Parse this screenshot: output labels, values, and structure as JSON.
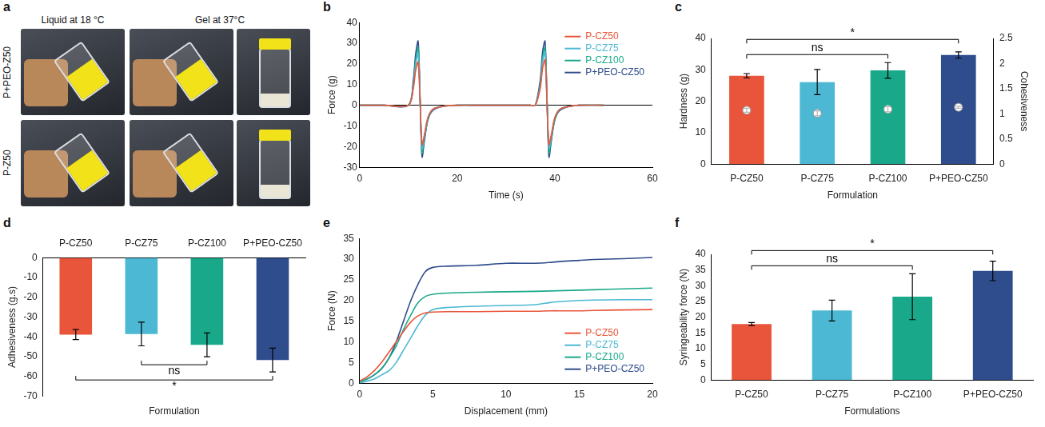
{
  "photo_panel": {
    "letter": "a",
    "column_titles": [
      "Liquid at 18 °C",
      "Gel at 37°C"
    ],
    "row_titles": [
      "P+PEO-Z50",
      "P-Z50"
    ]
  },
  "chart_data": [
    {
      "letter": "b",
      "type": "line",
      "x_label": "Time (s)",
      "y_label": "Force (g)",
      "x": [
        0,
        5,
        10,
        11,
        11.5,
        12,
        12.4,
        12.8,
        13.3,
        14,
        15,
        17,
        20,
        25,
        30,
        35,
        36,
        37,
        37.5,
        38,
        38.4,
        38.8,
        39.3,
        40,
        41,
        43,
        45,
        50
      ],
      "series": [
        {
          "name": "P-CZ50",
          "color": "#e9553a",
          "values": [
            0,
            0,
            0,
            8,
            17,
            21,
            2,
            -19,
            -14,
            -6,
            -2,
            -0.5,
            0,
            0,
            0,
            0,
            0,
            8,
            18,
            22,
            2,
            -19,
            -14,
            -6,
            -2,
            -0.5,
            0,
            0
          ]
        },
        {
          "name": "P-CZ75",
          "color": "#4cb8d4",
          "values": [
            0,
            0,
            0,
            9,
            20,
            25,
            2,
            -21,
            -15,
            -6,
            -2,
            -0.5,
            0,
            0,
            0,
            0,
            0,
            9,
            21,
            26,
            2,
            -21,
            -15,
            -6,
            -2,
            -0.5,
            0,
            0
          ]
        },
        {
          "name": "P-CZ100",
          "color": "#19a98a",
          "values": [
            0,
            0,
            0,
            10,
            22,
            28,
            3,
            -23,
            -16,
            -7,
            -2,
            -0.5,
            0,
            0,
            0,
            0,
            0,
            10,
            23,
            28,
            3,
            -23,
            -16,
            -7,
            -2,
            -0.5,
            0,
            0
          ]
        },
        {
          "name": "P+PEO-CZ50",
          "color": "#2f4d8c",
          "values": [
            0,
            0,
            0,
            12,
            25,
            31,
            3,
            -25,
            -17,
            -7,
            -2.5,
            -0.5,
            0,
            0,
            0,
            0,
            0,
            12,
            26,
            31,
            3,
            -25,
            -17,
            -7,
            -2.5,
            -0.5,
            0,
            0
          ]
        }
      ],
      "xlim": [
        0,
        60
      ],
      "xticks": [
        0,
        20,
        40,
        60
      ],
      "ylim": [
        -30,
        40
      ],
      "yticks": [
        -30,
        -20,
        -10,
        0,
        10,
        20,
        30,
        40
      ],
      "grid": false,
      "legend": "upper right"
    },
    {
      "letter": "c",
      "type": "bar",
      "x_label": "Formulation",
      "y_label": "Hardness (g)",
      "y2_label": "Cohesiveness",
      "categories": [
        "P-CZ50",
        "P-CZ75",
        "P-CZ100",
        "P+PEO-CZ50"
      ],
      "series": [
        {
          "type": "bar",
          "colors": [
            "#e9553a",
            "#4cb8d4",
            "#19a98a",
            "#2f4d8c"
          ],
          "values": [
            28.1,
            26.1,
            29.8,
            34.7
          ],
          "errors": [
            0.7,
            4.0,
            2.5,
            1.0
          ]
        },
        {
          "type": "scatter",
          "axis": "y2",
          "color": "#ffffff",
          "marker": "circle",
          "values": [
            1.07,
            1.01,
            1.09,
            1.13
          ],
          "errors": [
            0.04,
            0.05,
            0.05,
            0.02
          ]
        }
      ],
      "ylim": [
        0,
        40
      ],
      "yticks": [
        0,
        10,
        20,
        30,
        40
      ],
      "y2lim": [
        0,
        2.5
      ],
      "y2ticks": [
        0,
        0.5,
        1,
        1.5,
        2,
        2.5
      ],
      "annotations": [
        {
          "text": "ns",
          "from": "P-CZ50",
          "to": "P-CZ100"
        },
        {
          "text": "*",
          "from": "P-CZ50",
          "to": "P+PEO-CZ50"
        }
      ],
      "grid": false
    },
    {
      "letter": "d",
      "type": "bar",
      "x_label": "Formulation",
      "y_label": "Adhesiveness (g.s)",
      "categories": [
        "P-CZ50",
        "P-CZ75",
        "P-CZ100",
        "P+PEO-CZ50"
      ],
      "colors": [
        "#e9553a",
        "#4cb8d4",
        "#19a98a",
        "#2f4d8c"
      ],
      "values": [
        -38.8,
        -38.5,
        -44.0,
        -51.7
      ],
      "errors": [
        2.5,
        6.0,
        6.0,
        6.0
      ],
      "ylim": [
        -70,
        0
      ],
      "yticks": [
        -70,
        -60,
        -50,
        -40,
        -30,
        -20,
        -10,
        0
      ],
      "annotations": [
        {
          "text": "ns",
          "from": "P-CZ75",
          "to": "P-CZ100"
        },
        {
          "text": "*",
          "from": "P-CZ50",
          "to": "P+PEO-CZ50"
        }
      ],
      "grid": false
    },
    {
      "letter": "e",
      "type": "line",
      "x_label": "Displacement (mm)",
      "y_label": "Force (N)",
      "x": [
        0,
        0.5,
        1,
        1.5,
        2,
        2.5,
        3,
        3.5,
        4,
        4.5,
        5,
        6,
        8,
        10,
        12,
        13,
        14,
        15,
        16,
        18,
        20
      ],
      "series": [
        {
          "name": "P-CZ50",
          "color": "#e9553a",
          "values": [
            0.5,
            1.5,
            3,
            5,
            7.5,
            10,
            12.5,
            14.8,
            16.3,
            17,
            17.2,
            17.3,
            17.3,
            17.4,
            17.4,
            17.5,
            17.5,
            17.5,
            17.6,
            17.7,
            17.8
          ]
        },
        {
          "name": "P-CZ75",
          "color": "#4cb8d4",
          "values": [
            0,
            0.5,
            1,
            2,
            3,
            5,
            8,
            11,
            14,
            16.5,
            17.8,
            18.3,
            18.6,
            18.8,
            19,
            19.5,
            19.8,
            20,
            20.1,
            20.2,
            20.2
          ]
        },
        {
          "name": "P-CZ100",
          "color": "#19a98a",
          "values": [
            0.3,
            1,
            2,
            3.5,
            6,
            9,
            13,
            16.5,
            19.5,
            21,
            21.5,
            21.8,
            22,
            22.1,
            22.2,
            22.3,
            22.4,
            22.5,
            22.6,
            22.8,
            23
          ]
        },
        {
          "name": "P+PEO-CZ50",
          "color": "#2f4d8c",
          "values": [
            0.3,
            1,
            2,
            3.5,
            6,
            10,
            15,
            20,
            24,
            27,
            28,
            28.3,
            28.5,
            29,
            29,
            29.2,
            29.5,
            29.7,
            29.9,
            30.1,
            30.4
          ]
        }
      ],
      "xlim": [
        0,
        20
      ],
      "xticks": [
        0,
        5,
        10,
        15,
        20
      ],
      "ylim": [
        0,
        35
      ],
      "yticks": [
        0,
        5,
        10,
        15,
        20,
        25,
        30,
        35
      ],
      "grid": false,
      "legend": "lower right"
    },
    {
      "letter": "f",
      "type": "bar",
      "x_label": "Formulations",
      "y_label": "Syringeability force (N)",
      "categories": [
        "P-CZ50",
        "P-CZ75",
        "P-CZ100",
        "P+PEO-CZ50"
      ],
      "colors": [
        "#e9553a",
        "#4cb8d4",
        "#19a98a",
        "#2f4d8c"
      ],
      "values": [
        17.8,
        22.1,
        26.5,
        34.7
      ],
      "errors": [
        0.5,
        3.3,
        7.3,
        3.1
      ],
      "ylim": [
        0,
        40
      ],
      "yticks": [
        0,
        5,
        10,
        15,
        20,
        25,
        30,
        35,
        40
      ],
      "annotations": [
        {
          "text": "ns",
          "from": "P-CZ50",
          "to": "P-CZ100"
        },
        {
          "text": "*",
          "from": "P-CZ50",
          "to": "P+PEO-CZ50"
        }
      ],
      "grid": false
    }
  ]
}
